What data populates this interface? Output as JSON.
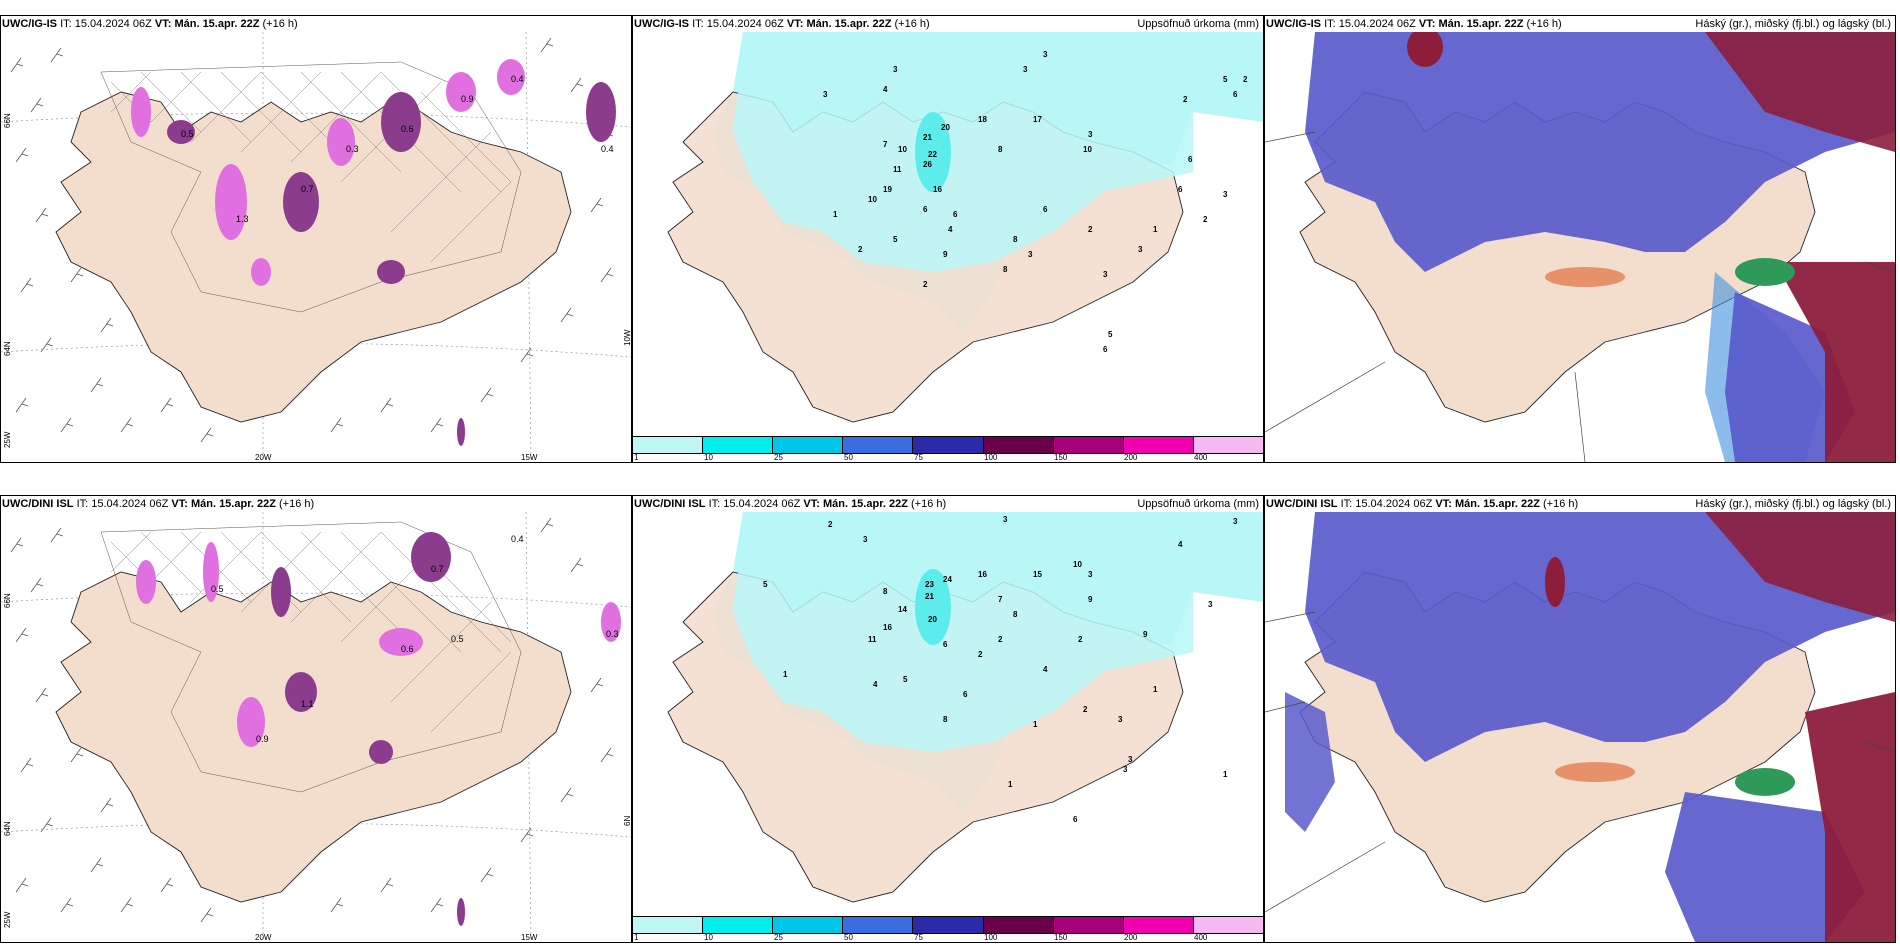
{
  "colors": {
    "land": "#f3dece",
    "sea": "#ffffff",
    "coast": "#222222",
    "precip_light": "#b8f7f7",
    "precip_mid": "#5cecec",
    "snow_pink": "#e070e0",
    "snow_purple": "#8c3c8c",
    "cloud_high": "#5a5acc",
    "cloud_mid": "#3f8fe0",
    "cloud_low": "#8c1e3c",
    "cloud_green": "#2e9a5a",
    "cloud_orange": "#e07040"
  },
  "colorbar": {
    "colors": [
      "#bff7f7",
      "#00eeee",
      "#00c6e8",
      "#3a6ee0",
      "#2a2aaa",
      "#6a004a",
      "#a8007a",
      "#f000b0",
      "#f5b8f0"
    ],
    "ticks": [
      "1",
      "10",
      "25",
      "50",
      "75",
      "100",
      "150",
      "200",
      "400"
    ]
  },
  "rows": [
    {
      "model": "UWC/IG-IS",
      "it_prefix": "IT:",
      "it_value": "15.04.2024 06Z",
      "vt_label": "VT:",
      "vt_value": "Mán. 15.apr. 22Z",
      "lead": "(+16 h)",
      "panels": [
        {
          "right_title": "",
          "axes": {
            "lat_top": "66N",
            "lat_mid": "64N",
            "lat_bot": "25W",
            "lon_left": "20W",
            "lon_right": "15W",
            "lat_right": "10W"
          },
          "snow_labels": [
            "0.4",
            "0.6",
            "1.3",
            "0.7",
            "0.4",
            "0.3",
            "0.5",
            "0.9"
          ]
        },
        {
          "right_title": "Uppsöfnuð úrkoma (mm)",
          "values": [
            "3",
            "3",
            "4",
            "3",
            "3",
            "2",
            "5",
            "2",
            "6",
            "3",
            "7",
            "10",
            "21",
            "20",
            "22",
            "26",
            "16",
            "18",
            "17",
            "8",
            "10",
            "11",
            "19",
            "10",
            "6",
            "6",
            "4",
            "5",
            "2",
            "1",
            "8",
            "9",
            "6",
            "2",
            "3",
            "1",
            "6",
            "6",
            "2",
            "3",
            "8",
            "3",
            "2",
            "3",
            "6",
            "5"
          ]
        },
        {
          "right_title": "Háský (gr.), miðský (fj.bl.) og lágský (bl.)"
        }
      ]
    },
    {
      "model": "UWC/DINI ISL",
      "it_prefix": "IT:",
      "it_value": "15.04.2024 06Z",
      "vt_label": "VT:",
      "vt_value": "Mán. 15.apr. 22Z",
      "lead": "(+16 h)",
      "panels": [
        {
          "right_title": "",
          "axes": {
            "lat_top": "66N",
            "lat_mid": "64N",
            "lat_bot": "25W",
            "lon_left": "20W",
            "lon_right": "15W",
            "lat_right": "6N"
          },
          "snow_labels": [
            "0.4",
            "0.7",
            "1.1",
            "0.5",
            "0.3",
            "0.6",
            "0.9",
            "0.5"
          ]
        },
        {
          "right_title": "Uppsöfnuð úrkoma (mm)",
          "values": [
            "2",
            "3",
            "4",
            "3",
            "3",
            "5",
            "8",
            "14",
            "23",
            "24",
            "21",
            "20",
            "16",
            "16",
            "15",
            "11",
            "10",
            "9",
            "7",
            "8",
            "6",
            "5",
            "4",
            "2",
            "2",
            "3",
            "9",
            "3",
            "1",
            "1",
            "8",
            "6",
            "2",
            "4",
            "1",
            "3",
            "3",
            "1",
            "1",
            "6",
            "2",
            "3"
          ]
        },
        {
          "right_title": "Háský (gr.), miðský (fj.bl.) og lágský (bl.)"
        }
      ]
    }
  ]
}
